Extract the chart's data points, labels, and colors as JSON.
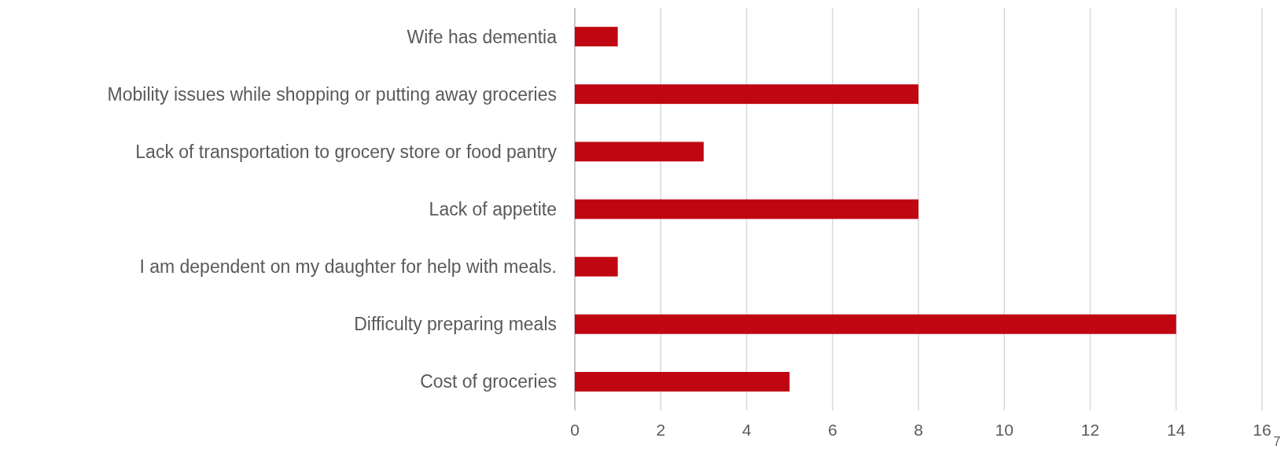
{
  "chart_data": {
    "type": "bar",
    "orientation": "horizontal",
    "categories": [
      "Wife has dementia",
      "Mobility issues while shopping or putting away groceries",
      "Lack of transportation to grocery store or food pantry",
      "Lack of appetite",
      "I am dependent on my daughter for help with meals.",
      "Difficulty preparing meals",
      "Cost of groceries"
    ],
    "values": [
      1,
      8,
      3,
      8,
      1,
      14,
      5
    ],
    "color": "#c00611",
    "xlim": [
      0,
      16
    ],
    "xticks": [
      0,
      2,
      4,
      6,
      8,
      10,
      12,
      14,
      16
    ],
    "grid": "x",
    "annotations": [
      "7"
    ]
  }
}
